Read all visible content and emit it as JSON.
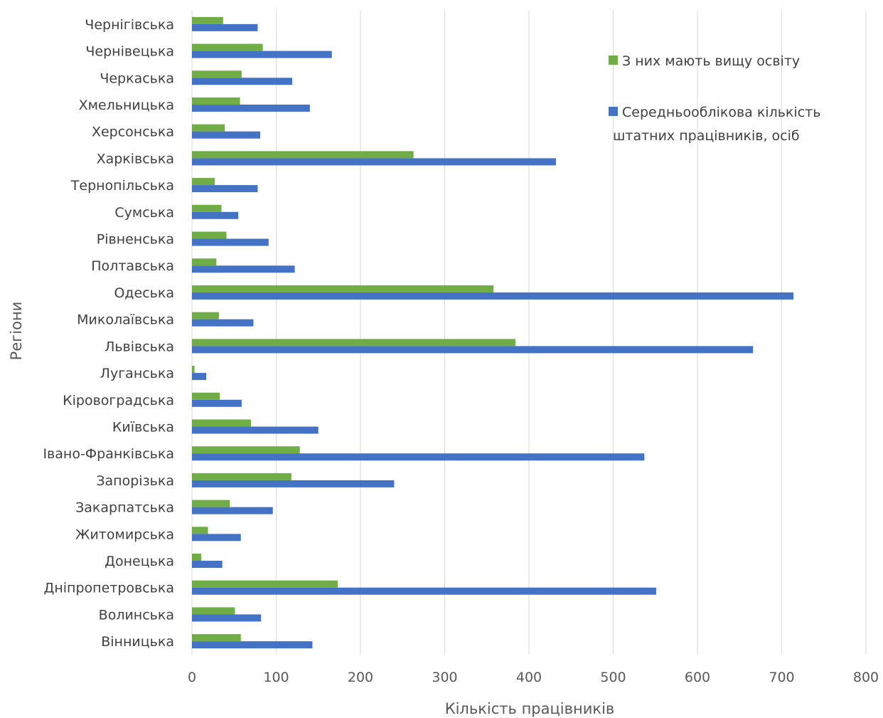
{
  "chart_data": {
    "type": "bar",
    "orientation": "horizontal",
    "categories": [
      "Чернігівська",
      "Чернівецька",
      "Черкаська",
      "Хмельницька",
      "Херсонська",
      "Харківська",
      "Тернопільська",
      "Сумська",
      "Рівненська",
      "Полтавська",
      "Одеська",
      "Миколаївська",
      "Львівська",
      "Луганська",
      "Кіровоградська",
      "Київська",
      "Івано-Франківська",
      "Запорізька",
      "Закарпатська",
      "Житомирська",
      "Донецька",
      "Дніпропетровська",
      "Волинська",
      "Вінницька"
    ],
    "series": [
      {
        "name": "З них мають вищу освіту",
        "color": "#70ad47",
        "values": [
          37,
          84,
          59,
          57,
          39,
          263,
          27,
          35,
          41,
          29,
          358,
          32,
          384,
          3,
          33,
          70,
          128,
          118,
          45,
          19,
          11,
          173,
          51,
          58
        ]
      },
      {
        "name": "Середньооблікова кількість штатних працівників, осіб",
        "color": "#4472c4",
        "values": [
          78,
          166,
          119,
          140,
          81,
          432,
          78,
          55,
          91,
          122,
          714,
          73,
          666,
          17,
          59,
          150,
          537,
          240,
          96,
          58,
          36,
          551,
          82,
          143
        ]
      }
    ],
    "xlabel": "Кількість працівників",
    "ylabel": "Регіони",
    "xlim": [
      0,
      800
    ],
    "xticks": [
      0,
      100,
      200,
      300,
      400,
      500,
      600,
      700,
      800
    ],
    "grid": "vertical",
    "legend_position": "top-right"
  }
}
